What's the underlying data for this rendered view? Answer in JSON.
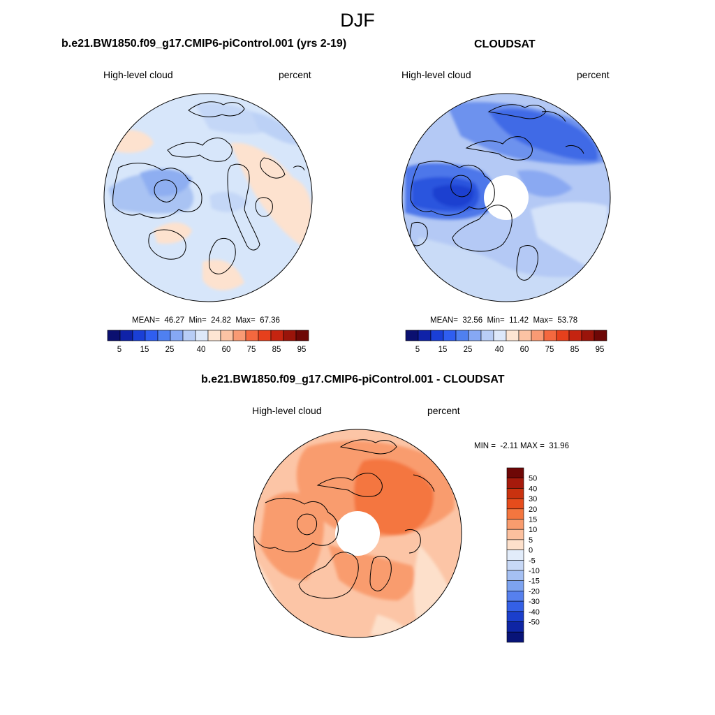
{
  "figure": {
    "season": "DJF"
  },
  "panels": [
    {
      "id": "model",
      "title": "b.e21.BW1850.f09_g17.CMIP6-piControl.001 (yrs 2-19)",
      "left_label": "High-level cloud",
      "right_label": "percent",
      "stats": {
        "mean_label": "MEAN=",
        "mean": "46.27",
        "min_label": "Min=",
        "min": "24.82",
        "max_label": "Max=",
        "max": "67.36"
      }
    },
    {
      "id": "obs",
      "title": "CLOUDSAT",
      "left_label": "High-level cloud",
      "right_label": "percent",
      "stats": {
        "mean_label": "MEAN=",
        "mean": "32.56",
        "min_label": "Min=",
        "min": "11.42",
        "max_label": "Max=",
        "max": "53.78"
      }
    },
    {
      "id": "diff",
      "title": "b.e21.BW1850.f09_g17.CMIP6-piControl.001 - CLOUDSAT",
      "left_label": "High-level cloud",
      "right_label": "percent",
      "stats": {
        "min_label": "MIN =",
        "min": "-2.11",
        "max_label": "MAX =",
        "max": "31.96"
      }
    }
  ],
  "colorbar_abs": {
    "colors": [
      "#0b1070",
      "#0f22a8",
      "#1a3fd6",
      "#2f5ef0",
      "#4f80f0",
      "#86a8f4",
      "#b8cdf6",
      "#dde8fa",
      "#fde5d3",
      "#fcc3a4",
      "#f99a74",
      "#f4683f",
      "#e6401c",
      "#c52410",
      "#9a140a",
      "#6e0706"
    ],
    "ticks": [
      "5",
      "15",
      "25",
      "40",
      "60",
      "75",
      "85",
      "95"
    ]
  },
  "colorbar_diff": {
    "colors": [
      "#6e0706",
      "#a61a0c",
      "#c9320f",
      "#e64c1c",
      "#f4763f",
      "#f99c6e",
      "#fcc09e",
      "#fde0cb",
      "#e2ecfa",
      "#c7d8f6",
      "#a5c0f3",
      "#7da3f0",
      "#5680ee",
      "#3460e6",
      "#1b3fcc",
      "#0e25a4",
      "#081478"
    ],
    "ticks": [
      "50",
      "40",
      "30",
      "20",
      "15",
      "10",
      "5",
      "0",
      "-5",
      "-10",
      "-15",
      "-20",
      "-30",
      "-40",
      "-50"
    ]
  },
  "chart_data": [
    {
      "type": "heatmap",
      "title": "b.e21.BW1850.f09_g17.CMIP6-piControl.001 (yrs 2-19)",
      "projection": "North polar stereographic",
      "variable": "High-level cloud",
      "units": "percent",
      "mean": 46.27,
      "min": 24.82,
      "max": 67.36,
      "levels": [
        5,
        10,
        15,
        20,
        25,
        30,
        40,
        50,
        60,
        70,
        75,
        80,
        85,
        90,
        95
      ]
    },
    {
      "type": "heatmap",
      "title": "CLOUDSAT",
      "projection": "North polar stereographic",
      "variable": "High-level cloud",
      "units": "percent",
      "mean": 32.56,
      "min": 11.42,
      "max": 53.78,
      "levels": [
        5,
        10,
        15,
        20,
        25,
        30,
        40,
        50,
        60,
        70,
        75,
        80,
        85,
        90,
        95
      ]
    },
    {
      "type": "heatmap",
      "title": "b.e21.BW1850.f09_g17.CMIP6-piControl.001 - CLOUDSAT",
      "projection": "North polar stereographic",
      "variable": "High-level cloud",
      "units": "percent",
      "min": -2.11,
      "max": 31.96,
      "levels": [
        -50,
        -40,
        -30,
        -20,
        -15,
        -10,
        -5,
        0,
        5,
        10,
        15,
        20,
        30,
        40,
        50
      ]
    }
  ]
}
